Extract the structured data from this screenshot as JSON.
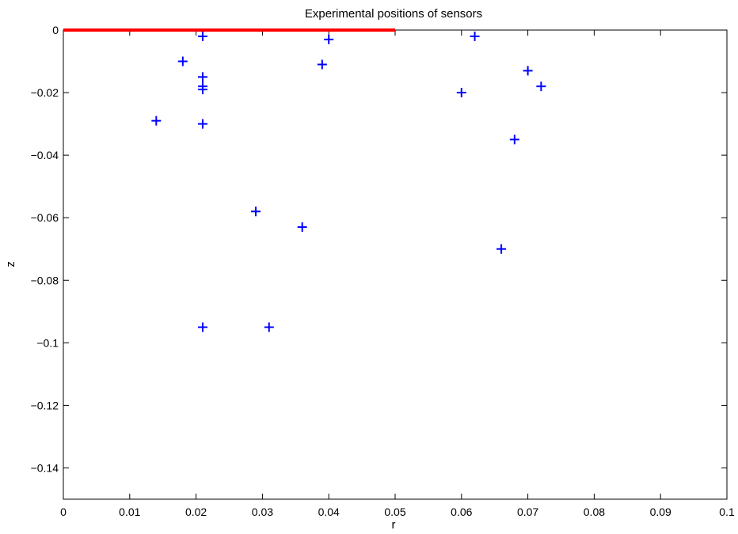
{
  "chart_data": {
    "type": "scatter",
    "title": "Experimental positions of sensors",
    "xlabel": "r",
    "ylabel": "z",
    "xlim": [
      0,
      0.1
    ],
    "ylim": [
      -0.15,
      0
    ],
    "grid": false,
    "x_ticks": [
      0,
      0.01,
      0.02,
      0.03,
      0.04,
      0.05,
      0.06,
      0.07,
      0.08,
      0.09,
      0.1
    ],
    "x_tick_labels": [
      "0",
      "0.01",
      "0.02",
      "0.03",
      "0.04",
      "0.05",
      "0.06",
      "0.07",
      "0.08",
      "0.09",
      "0.1"
    ],
    "y_ticks": [
      0,
      -0.02,
      -0.04,
      -0.06,
      -0.08,
      -0.1,
      -0.12,
      -0.14
    ],
    "y_tick_labels": [
      "0",
      "−0.02",
      "−0.04",
      "−0.06",
      "−0.08",
      "−0.1",
      "−0.12",
      "−0.14"
    ],
    "series": [
      {
        "marker": "plus",
        "color": "#0000ff",
        "points": [
          [
            0.014,
            -0.029
          ],
          [
            0.018,
            -0.01
          ],
          [
            0.021,
            -0.002
          ],
          [
            0.021,
            -0.015
          ],
          [
            0.021,
            -0.018
          ],
          [
            0.021,
            -0.019
          ],
          [
            0.021,
            -0.03
          ],
          [
            0.021,
            -0.095
          ],
          [
            0.029,
            -0.058
          ],
          [
            0.031,
            -0.095
          ],
          [
            0.036,
            -0.063
          ],
          [
            0.039,
            -0.011
          ],
          [
            0.04,
            -0.003
          ],
          [
            0.06,
            -0.02
          ],
          [
            0.062,
            -0.002
          ],
          [
            0.066,
            -0.07
          ],
          [
            0.068,
            -0.035
          ],
          [
            0.07,
            -0.013
          ],
          [
            0.072,
            -0.018
          ]
        ]
      },
      {
        "marker": "line",
        "color": "#ff0000",
        "points": [
          [
            0,
            0
          ],
          [
            0.05,
            0
          ]
        ]
      }
    ]
  }
}
